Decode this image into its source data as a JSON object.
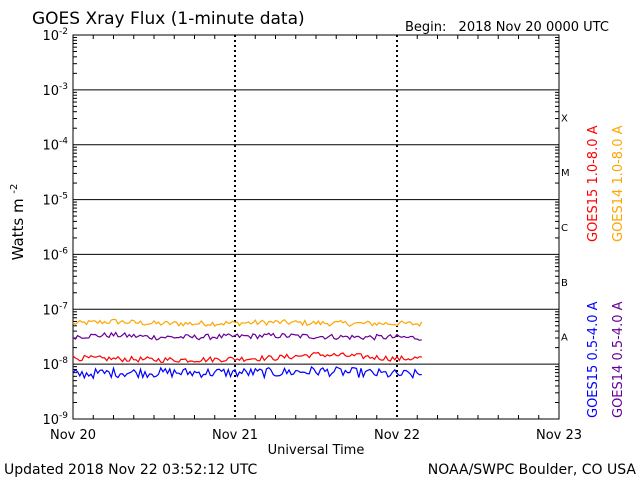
{
  "chart_data": {
    "type": "line",
    "title": "GOES Xray Flux (1-minute data)",
    "begin_label": "Begin:",
    "begin_value": "2018 Nov 20 0000 UTC",
    "ylabel_prefix": "Watts m",
    "ylabel_exponent": "-2",
    "xlabel": "Universal Time",
    "yscale": "log",
    "ylim": [
      1e-09,
      0.01
    ],
    "xlim": [
      "2018-11-20T00:00",
      "2018-11-23T00:00"
    ],
    "y_ticks": [
      {
        "value": 1e-09,
        "base": "10",
        "exp": "-9"
      },
      {
        "value": 1e-08,
        "base": "10",
        "exp": "-8"
      },
      {
        "value": 1e-07,
        "base": "10",
        "exp": "-7"
      },
      {
        "value": 1e-06,
        "base": "10",
        "exp": "-6"
      },
      {
        "value": 1e-05,
        "base": "10",
        "exp": "-5"
      },
      {
        "value": 0.0001,
        "base": "10",
        "exp": "-4"
      },
      {
        "value": 0.001,
        "base": "10",
        "exp": "-3"
      },
      {
        "value": 0.01,
        "base": "10",
        "exp": "-2"
      }
    ],
    "x_ticks": [
      {
        "label": "Nov 20",
        "day": 0
      },
      {
        "label": "Nov 21",
        "day": 1
      },
      {
        "label": "Nov 22",
        "day": 2
      },
      {
        "label": "Nov 23",
        "day": 3
      }
    ],
    "flare_classes": [
      {
        "label": "A",
        "lower": 1e-08
      },
      {
        "label": "B",
        "lower": 1e-07
      },
      {
        "label": "C",
        "lower": 1e-06
      },
      {
        "label": "M",
        "lower": 1e-05
      },
      {
        "label": "X",
        "lower": 0.0001
      }
    ],
    "grid": true,
    "legend_placement": "right, vertical",
    "series": [
      {
        "name": "GOES15 1.0-8.0 A",
        "color": "#ff0000",
        "x": [
          "2018-11-20T00:00",
          "2018-11-20T06:00",
          "2018-11-20T12:00",
          "2018-11-20T18:00",
          "2018-11-21T00:00",
          "2018-11-21T06:00",
          "2018-11-21T12:00",
          "2018-11-21T18:00",
          "2018-11-22T00:00",
          "2018-11-22T03:52"
        ],
        "y": [
          1.3e-08,
          1.25e-08,
          1.2e-08,
          1.2e-08,
          1.25e-08,
          1.3e-08,
          1.5e-08,
          1.4e-08,
          1.25e-08,
          1.3e-08
        ]
      },
      {
        "name": "GOES14 1.0-8.0 A",
        "color": "#ffa500",
        "x": [
          "2018-11-20T00:00",
          "2018-11-20T06:00",
          "2018-11-20T12:00",
          "2018-11-20T18:00",
          "2018-11-21T00:00",
          "2018-11-21T06:00",
          "2018-11-21T12:00",
          "2018-11-21T18:00",
          "2018-11-22T00:00",
          "2018-11-22T03:52"
        ],
        "y": [
          5.5e-08,
          6e-08,
          5.5e-08,
          5.5e-08,
          5.6e-08,
          5.8e-08,
          5.6e-08,
          5.5e-08,
          5.5e-08,
          5.4e-08
        ]
      },
      {
        "name": "GOES15 0.5-4.0 A",
        "color": "#0000ff",
        "x": [
          "2018-11-20T00:00",
          "2018-11-20T06:00",
          "2018-11-20T12:00",
          "2018-11-20T18:00",
          "2018-11-21T00:00",
          "2018-11-21T06:00",
          "2018-11-21T12:00",
          "2018-11-21T18:00",
          "2018-11-22T00:00",
          "2018-11-22T03:52"
        ],
        "y": [
          6.5e-09,
          7e-09,
          7e-09,
          7e-09,
          7e-09,
          7e-09,
          7.5e-09,
          7e-09,
          6.5e-09,
          6.5e-09
        ]
      },
      {
        "name": "GOES14 0.5-4.0 A",
        "color": "#660099",
        "x": [
          "2018-11-20T00:00",
          "2018-11-20T06:00",
          "2018-11-20T12:00",
          "2018-11-20T18:00",
          "2018-11-21T00:00",
          "2018-11-21T06:00",
          "2018-11-21T12:00",
          "2018-11-21T18:00",
          "2018-11-22T00:00",
          "2018-11-22T03:52"
        ],
        "y": [
          3.2e-08,
          3.4e-08,
          3.1e-08,
          3.1e-08,
          3.2e-08,
          3.3e-08,
          3.2e-08,
          3.1e-08,
          3.1e-08,
          3e-08
        ]
      }
    ]
  },
  "footer": {
    "updated": "Updated 2018 Nov 22 03:52:12 UTC",
    "credit": "NOAA/SWPC Boulder, CO USA"
  }
}
